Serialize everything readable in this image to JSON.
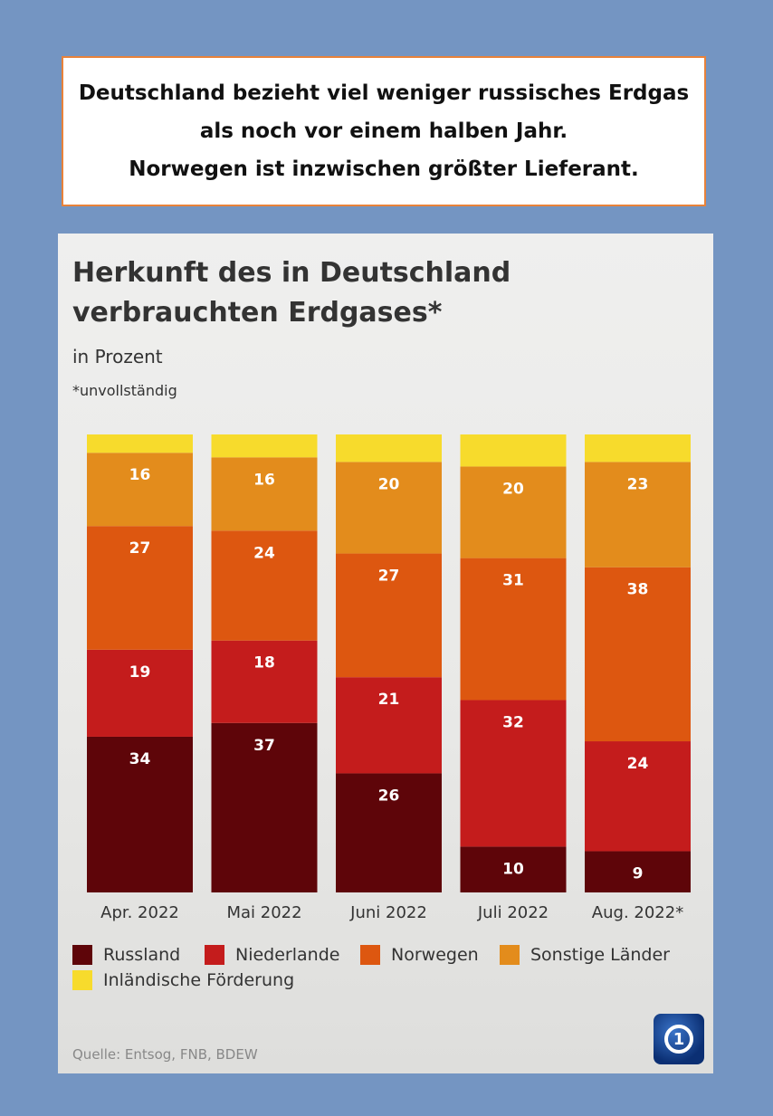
{
  "headline": {
    "lines": [
      "Deutschland bezieht viel weniger russisches Erdgas",
      "als noch vor einem halben Jahr.",
      "Norwegen ist inzwischen größter Lieferant."
    ]
  },
  "source": "Quelle: Entsog, FNB, BDEW",
  "logo_text": "1",
  "colors": {
    "russland": "#5e0509",
    "niederlande": "#c41c1c",
    "norwegen": "#dd5710",
    "sonstige": "#e38c1c",
    "inland": "#f7db2c",
    "headline_border": "#e8823a",
    "background": "#7495c2"
  },
  "chart_data": {
    "type": "bar",
    "stacked": true,
    "title": "Herkunft des in Deutschland verbrauchten Erdgases*",
    "subtitle": "in Prozent",
    "footnote": "*unvollständig",
    "categories": [
      "Apr. 2022",
      "Mai 2022",
      "Juni 2022",
      "Juli 2022",
      "Aug. 2022*"
    ],
    "series": [
      {
        "name": "Russland",
        "values": [
          34,
          37,
          26,
          10,
          9
        ],
        "color": "#5e0509"
      },
      {
        "name": "Niederlande",
        "values": [
          19,
          18,
          21,
          32,
          24
        ],
        "color": "#c41c1c"
      },
      {
        "name": "Norwegen",
        "values": [
          27,
          24,
          27,
          31,
          38
        ],
        "color": "#dd5710"
      },
      {
        "name": "Sonstige Länder",
        "values": [
          16,
          16,
          20,
          20,
          23
        ],
        "color": "#e38c1c"
      },
      {
        "name": "Inländische Förderung",
        "values": [
          4,
          5,
          6,
          7,
          6
        ],
        "color": "#f7db2c",
        "labeled": false
      }
    ],
    "ylim": [
      0,
      100
    ],
    "legend": "bottom"
  }
}
